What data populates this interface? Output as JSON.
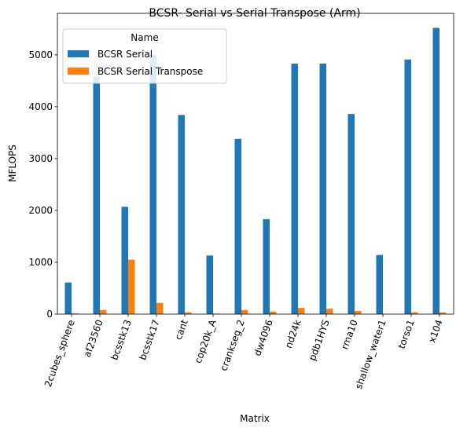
{
  "chart_data": {
    "type": "bar",
    "title": "BCSR- Serial vs Serial Transpose (Arm)",
    "xlabel": "Matrix",
    "ylabel": "MFLOPS",
    "ylim": [
      0,
      5800
    ],
    "yticks": [
      0,
      1000,
      2000,
      3000,
      4000,
      5000
    ],
    "grid": false,
    "legend": {
      "title": "Name",
      "placement": "top-left"
    },
    "categories": [
      "2cubes_sphere",
      "af23560",
      "bcsstk13",
      "bcsstk17",
      "cant",
      "cop20k_A",
      "crankseg_2",
      "dw4096",
      "nd24k",
      "pdb1HYS",
      "rma10",
      "shallow_water1",
      "torso1",
      "x104"
    ],
    "series": [
      {
        "name": "BCSR Serial",
        "color": "#1f77b4",
        "values": [
          610,
          4580,
          2070,
          5000,
          3840,
          1130,
          3380,
          1830,
          4830,
          4830,
          3860,
          1140,
          4910,
          5520
        ]
      },
      {
        "name": "BCSR Serial Transpose",
        "color": "#ff7f0e",
        "values": [
          15,
          80,
          1050,
          215,
          35,
          10,
          80,
          50,
          120,
          105,
          60,
          5,
          35,
          35
        ]
      }
    ]
  }
}
